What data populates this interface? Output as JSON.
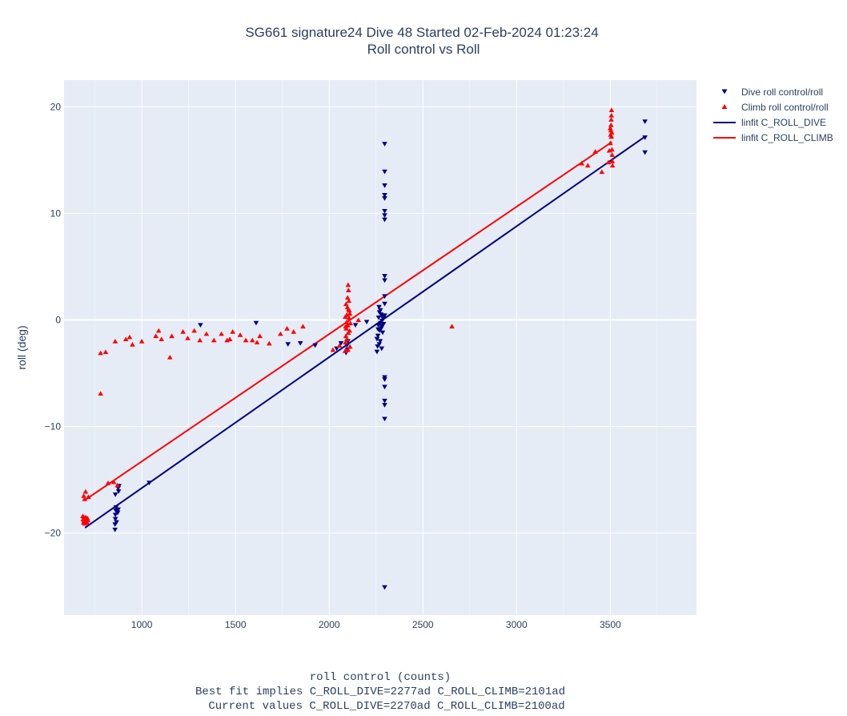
{
  "chart_data": {
    "type": "scatter",
    "title": "SG661 signature24 Dive 48 Started 02-Feb-2024 01:23:24",
    "subtitle": "Roll control vs Roll",
    "xlabel": "roll control (counts)",
    "xlabel_notes": [
      "Best fit implies C_ROLL_DIVE=2277ad C_ROLL_CLIMB=2101ad",
      "Current values C_ROLL_DIVE=2270ad C_ROLL_CLIMB=2100ad"
    ],
    "ylabel": "roll (deg)",
    "xlim": [
      585,
      3960
    ],
    "ylim": [
      -27.7,
      22.5
    ],
    "xticks": [
      1000,
      1500,
      2000,
      2500,
      3000,
      3500
    ],
    "xtick_labels": [
      "1000",
      "1500",
      "2000",
      "2500",
      "3000",
      "3500"
    ],
    "yticks": [
      -20,
      -10,
      0,
      10,
      20
    ],
    "ytick_labels": [
      "−20",
      "−10",
      "0",
      "10",
      "20"
    ],
    "grid": true,
    "legend_position": "top-right, outside plot",
    "colors": {
      "plot_bg": "#e5ecf6",
      "grid": "#ffffff",
      "dive": "#000080",
      "climb": "#ff0000",
      "text": "#2a3f5f"
    },
    "series": [
      {
        "name": "Dive roll control/roll",
        "kind": "markers",
        "marker": "triangle-down",
        "color": "#000080",
        "points": [
          [
            857,
            -19.7
          ],
          [
            857,
            -19.2
          ],
          [
            859,
            -18.7
          ],
          [
            859,
            -18.3
          ],
          [
            861,
            -17.9
          ],
          [
            863,
            -17.6
          ],
          [
            859,
            -16.4
          ],
          [
            865,
            -19.0
          ],
          [
            872,
            -18.1
          ],
          [
            874,
            -17.8
          ],
          [
            876,
            -16.1
          ],
          [
            874,
            -15.8
          ],
          [
            878,
            -15.6
          ],
          [
            1040,
            -15.3
          ],
          [
            1313,
            -0.5
          ],
          [
            1610,
            -0.3
          ],
          [
            1780,
            -2.3
          ],
          [
            1846,
            -2.2
          ],
          [
            1925,
            -2.4
          ],
          [
            2040,
            -2.7
          ],
          [
            2063,
            -2.2
          ],
          [
            2090,
            -3.1
          ],
          [
            2095,
            -2.4
          ],
          [
            2098,
            -2.8
          ],
          [
            2100,
            -2.0
          ],
          [
            2140,
            -0.5
          ],
          [
            2200,
            -0.2
          ],
          [
            2255,
            -3.0
          ],
          [
            2258,
            -2.5
          ],
          [
            2260,
            -1.5
          ],
          [
            2262,
            -0.5
          ],
          [
            2264,
            0.2
          ],
          [
            2266,
            1.2
          ],
          [
            2268,
            0.7
          ],
          [
            2270,
            -1.0
          ],
          [
            2272,
            -2.0
          ],
          [
            2274,
            -0.3
          ],
          [
            2276,
            0.5
          ],
          [
            2278,
            -0.8
          ],
          [
            2280,
            -2.7
          ],
          [
            2282,
            -0.1
          ],
          [
            2285,
            -1.2
          ],
          [
            2288,
            0.1
          ],
          [
            2290,
            -0.4
          ],
          [
            2255,
            -1.8
          ],
          [
            2261,
            -0.9
          ],
          [
            2267,
            -2.3
          ],
          [
            2273,
            0.9
          ],
          [
            2279,
            -0.6
          ],
          [
            2284,
            0.4
          ],
          [
            2296,
            16.5
          ],
          [
            2296,
            13.9
          ],
          [
            2296,
            12.6
          ],
          [
            2296,
            11.7
          ],
          [
            2296,
            11.4
          ],
          [
            2296,
            10.2
          ],
          [
            2296,
            9.8
          ],
          [
            2296,
            9.4
          ],
          [
            2296,
            4.1
          ],
          [
            2296,
            3.7
          ],
          [
            2296,
            2.2
          ],
          [
            2296,
            1.5
          ],
          [
            2296,
            0.4
          ],
          [
            2296,
            -5.4
          ],
          [
            2296,
            -5.6
          ],
          [
            2296,
            -6.3
          ],
          [
            2296,
            -7.6
          ],
          [
            2296,
            -8.0
          ],
          [
            2296,
            -9.3
          ],
          [
            2296,
            -25.1
          ],
          [
            3685,
            18.6
          ],
          [
            3685,
            17.1
          ],
          [
            3685,
            15.7
          ]
        ]
      },
      {
        "name": "Climb roll control/roll",
        "kind": "markers",
        "marker": "triangle-up",
        "color": "#ff0000",
        "points": [
          [
            685,
            -18.4
          ],
          [
            687,
            -18.7
          ],
          [
            689,
            -19.0
          ],
          [
            691,
            -18.5
          ],
          [
            693,
            -18.8
          ],
          [
            695,
            -19.1
          ],
          [
            697,
            -18.6
          ],
          [
            699,
            -18.9
          ],
          [
            701,
            -18.5
          ],
          [
            703,
            -18.8
          ],
          [
            705,
            -18.7
          ],
          [
            707,
            -19.0
          ],
          [
            710,
            -18.6
          ],
          [
            712,
            -18.8
          ],
          [
            690,
            -16.5
          ],
          [
            695,
            -16.8
          ],
          [
            700,
            -16.1
          ],
          [
            715,
            -16.6
          ],
          [
            780,
            -6.9
          ],
          [
            780,
            -3.1
          ],
          [
            807,
            -3.0
          ],
          [
            820,
            -15.3
          ],
          [
            850,
            -15.2
          ],
          [
            870,
            -15.5
          ],
          [
            858,
            -2.0
          ],
          [
            915,
            -1.8
          ],
          [
            935,
            -1.6
          ],
          [
            950,
            -2.3
          ],
          [
            1000,
            -2.0
          ],
          [
            1075,
            -1.5
          ],
          [
            1090,
            -1.0
          ],
          [
            1105,
            -1.8
          ],
          [
            1150,
            -3.5
          ],
          [
            1160,
            -1.5
          ],
          [
            1220,
            -1.1
          ],
          [
            1245,
            -1.7
          ],
          [
            1280,
            -1.0
          ],
          [
            1310,
            -1.9
          ],
          [
            1345,
            -1.3
          ],
          [
            1385,
            -1.9
          ],
          [
            1425,
            -1.3
          ],
          [
            1455,
            -1.9
          ],
          [
            1470,
            -1.8
          ],
          [
            1485,
            -1.1
          ],
          [
            1525,
            -1.4
          ],
          [
            1555,
            -1.9
          ],
          [
            1590,
            -1.9
          ],
          [
            1615,
            -2.1
          ],
          [
            1630,
            -1.5
          ],
          [
            1680,
            -2.2
          ],
          [
            1740,
            -1.3
          ],
          [
            1775,
            -0.8
          ],
          [
            1810,
            -1.1
          ],
          [
            1860,
            -0.6
          ],
          [
            2020,
            -2.8
          ],
          [
            2055,
            -2.4
          ],
          [
            2085,
            -2.9
          ],
          [
            2087,
            -2.1
          ],
          [
            2089,
            -1.5
          ],
          [
            2091,
            -0.8
          ],
          [
            2093,
            -0.2
          ],
          [
            2095,
            0.5
          ],
          [
            2097,
            1.2
          ],
          [
            2099,
            -0.5
          ],
          [
            2101,
            3.3
          ],
          [
            2103,
            2.8
          ],
          [
            2105,
            1.8
          ],
          [
            2107,
            0.9
          ],
          [
            2109,
            -1.0
          ],
          [
            2111,
            -2.5
          ],
          [
            2113,
            -0.3
          ],
          [
            2086,
            0.3
          ],
          [
            2090,
            1.5
          ],
          [
            2094,
            -1.8
          ],
          [
            2098,
            2.1
          ],
          [
            2102,
            -1.2
          ],
          [
            2106,
            0.2
          ],
          [
            2110,
            0.6
          ],
          [
            2088,
            -0.6
          ],
          [
            2100,
            -2.8
          ],
          [
            2104,
            1.0
          ],
          [
            2156,
            0.0
          ],
          [
            2655,
            -0.6
          ],
          [
            3348,
            14.7
          ],
          [
            3380,
            14.5
          ],
          [
            3420,
            15.8
          ],
          [
            3455,
            13.9
          ],
          [
            3490,
            14.8
          ],
          [
            3495,
            15.9
          ],
          [
            3500,
            16.6
          ],
          [
            3502,
            17.4
          ],
          [
            3503,
            17.8
          ],
          [
            3504,
            18.3
          ],
          [
            3505,
            18.8
          ],
          [
            3506,
            19.2
          ],
          [
            3507,
            19.7
          ],
          [
            3508,
            17.6
          ],
          [
            3510,
            15.5
          ],
          [
            3511,
            14.9
          ],
          [
            3512,
            14.5
          ],
          [
            3500,
            18.0
          ],
          [
            3506,
            17.2
          ],
          [
            3509,
            16.0
          ]
        ]
      },
      {
        "name": "linfit C_ROLL_DIVE",
        "kind": "line",
        "color": "#000080",
        "points": [
          [
            697,
            -19.5
          ],
          [
            3685,
            17.2
          ]
        ]
      },
      {
        "name": "linfit C_ROLL_CLIMB",
        "kind": "line",
        "color": "#ff0000",
        "points": [
          [
            697,
            -16.9
          ],
          [
            3509,
            16.7
          ]
        ]
      }
    ]
  }
}
